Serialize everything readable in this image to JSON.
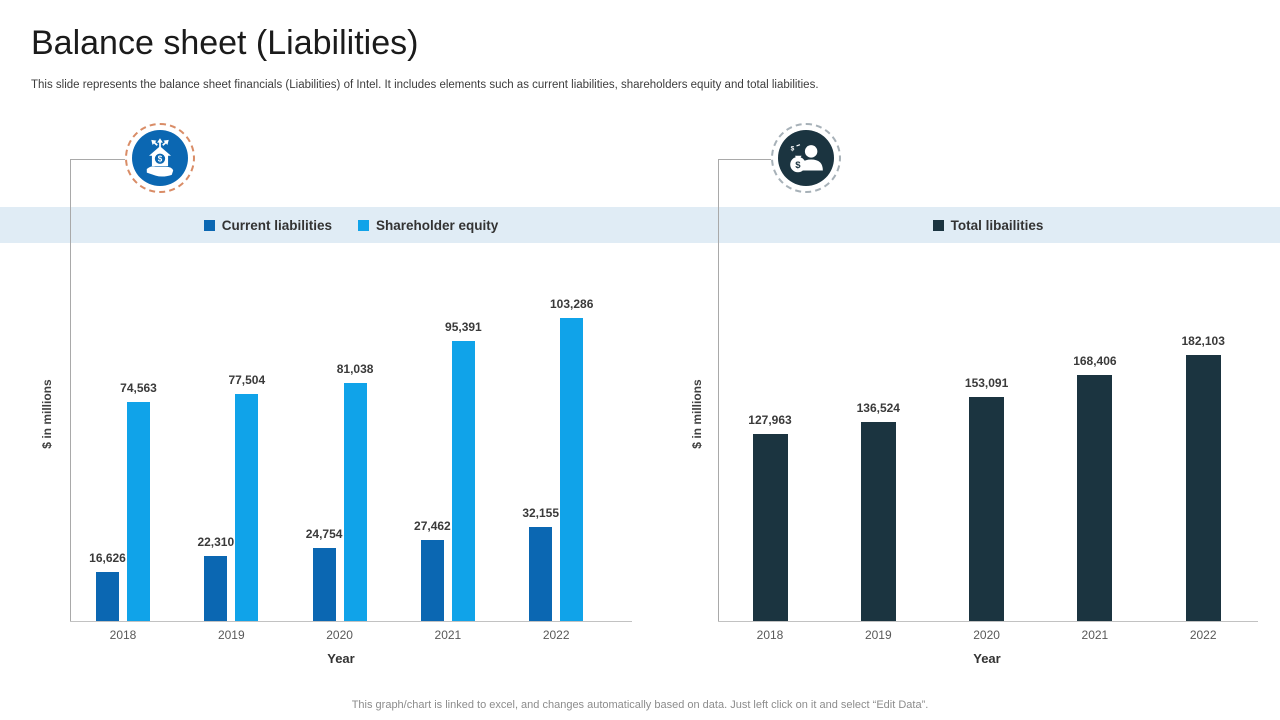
{
  "slide": {
    "title": "Balance sheet (Liabilities)",
    "subtitle": "This slide represents the balance sheet financials (Liabilities) of Intel. It includes elements such as current liabilities, shareholders equity and total liabilities.",
    "footer": "This graph/chart is linked to excel, and changes automatically based on data. Just left click on it and select “Edit Data”."
  },
  "colors": {
    "current_liabilities": "#0b67b2",
    "shareholder_equity": "#10a3e9",
    "total_liabilities": "#1b3440",
    "legend_band": "#e0ecf5",
    "left_icon_bg": "#0b67b2",
    "right_icon_bg": "#1b3440"
  },
  "icons": {
    "left": "savings-hand-icon",
    "right": "investor-money-icon"
  },
  "chart_data": [
    {
      "type": "bar",
      "title": "",
      "categories": [
        "2018",
        "2019",
        "2020",
        "2021",
        "2022"
      ],
      "series": [
        {
          "name": "Current liabilities",
          "color": "#0b67b2",
          "values": [
            16626,
            22310,
            24754,
            27462,
            32155
          ],
          "labels": [
            "16,626",
            "22,310",
            "24,754",
            "27,462",
            "32,155"
          ]
        },
        {
          "name": "Shareholder equity",
          "color": "#10a3e9",
          "values": [
            74563,
            77504,
            81038,
            95391,
            103286
          ],
          "labels": [
            "74,563",
            "77,504",
            "81,038",
            "95,391",
            "103,286"
          ]
        }
      ],
      "xlabel": "Year",
      "ylabel": "$ in millions",
      "ylim": [
        0,
        110000
      ],
      "grid": false,
      "legend_position": "top"
    },
    {
      "type": "bar",
      "title": "",
      "categories": [
        "2018",
        "2019",
        "2020",
        "2021",
        "2022"
      ],
      "series": [
        {
          "name": "Total libailities",
          "color": "#1b3440",
          "values": [
            127963,
            136524,
            153091,
            168406,
            182103
          ],
          "labels": [
            "127,963",
            "136,524",
            "153,091",
            "168,406",
            "182,103"
          ]
        }
      ],
      "xlabel": "Year",
      "ylabel": "$ in millions",
      "ylim": [
        0,
        190000
      ],
      "grid": false,
      "legend_position": "top"
    }
  ]
}
